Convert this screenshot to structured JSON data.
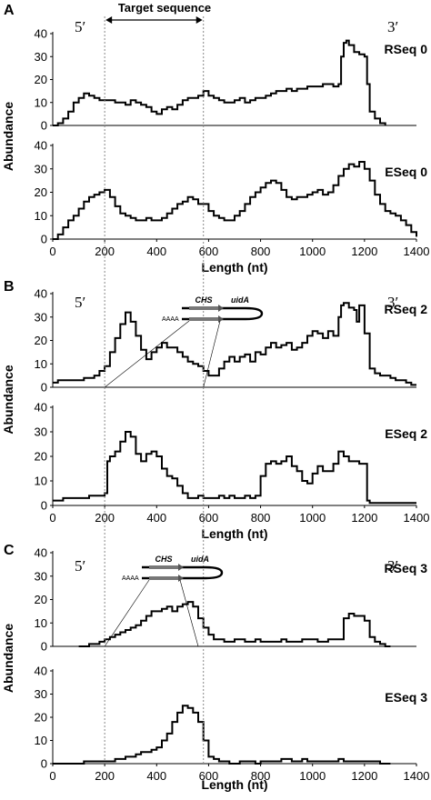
{
  "panels": [
    {
      "letter": "A",
      "label_5p": "5′",
      "label_3p": "3′",
      "ylabel": "Abundance",
      "xlabel": "Length (nt)",
      "target_label": "Target sequence"
    },
    {
      "letter": "B",
      "label_5p": "5′",
      "label_3p": "3′",
      "ylabel": "Abundance",
      "xlabel": "Length (nt)",
      "hairpin": {
        "chs": "CHS",
        "uida": "uidA",
        "polya": "AAAA"
      }
    },
    {
      "letter": "C",
      "label_5p": "5′",
      "label_3p": "3′",
      "ylabel": "Abundance",
      "xlabel": "Length (nt)",
      "hairpin": {
        "chs": "CHS",
        "uida": "uidA",
        "polya": "AAAA"
      }
    }
  ],
  "chart_data": [
    {
      "type": "line",
      "panel": "A",
      "name": "RSeq 0",
      "xlim": [
        0,
        1400
      ],
      "ylim": [
        0,
        40
      ],
      "yticks": [
        0,
        10,
        20,
        30,
        40
      ],
      "x": [
        0,
        20,
        40,
        60,
        80,
        100,
        120,
        140,
        160,
        180,
        200,
        220,
        240,
        260,
        280,
        300,
        320,
        340,
        360,
        380,
        400,
        420,
        440,
        460,
        480,
        500,
        520,
        540,
        560,
        580,
        600,
        620,
        640,
        660,
        680,
        700,
        720,
        740,
        760,
        780,
        800,
        820,
        840,
        860,
        880,
        900,
        920,
        940,
        960,
        980,
        1000,
        1020,
        1040,
        1060,
        1080,
        1100,
        1110,
        1120,
        1130,
        1140,
        1160,
        1180,
        1200,
        1210,
        1220,
        1240,
        1260,
        1280
      ],
      "y": [
        0,
        1,
        3,
        6,
        10,
        12,
        14,
        13,
        12,
        11,
        11,
        11,
        10,
        10,
        9,
        11,
        10,
        9,
        8,
        6,
        5,
        7,
        8,
        7,
        9,
        11,
        12,
        12,
        13,
        15,
        13,
        12,
        11,
        10,
        10,
        11,
        12,
        10,
        11,
        12,
        12,
        13,
        14,
        15,
        15,
        16,
        15,
        16,
        16,
        17,
        17,
        17,
        18,
        18,
        17,
        18,
        30,
        36,
        37,
        35,
        32,
        31,
        30,
        18,
        6,
        3,
        1,
        0
      ]
    },
    {
      "type": "line",
      "panel": "A",
      "name": "ESeq 0",
      "xlim": [
        0,
        1400
      ],
      "ylim": [
        0,
        40
      ],
      "xticks": [
        0,
        200,
        400,
        600,
        800,
        1000,
        1200,
        1400
      ],
      "yticks": [
        0,
        10,
        20,
        30,
        40
      ],
      "x": [
        0,
        20,
        40,
        60,
        80,
        100,
        120,
        140,
        160,
        180,
        200,
        220,
        240,
        260,
        280,
        300,
        320,
        340,
        360,
        380,
        400,
        420,
        440,
        460,
        480,
        500,
        520,
        540,
        560,
        580,
        600,
        620,
        640,
        660,
        680,
        700,
        720,
        740,
        760,
        780,
        800,
        820,
        840,
        860,
        880,
        900,
        920,
        940,
        960,
        980,
        1000,
        1020,
        1040,
        1060,
        1080,
        1100,
        1120,
        1140,
        1160,
        1180,
        1200,
        1220,
        1240,
        1260,
        1280,
        1300,
        1320,
        1340,
        1360,
        1380,
        1400
      ],
      "y": [
        0,
        2,
        5,
        8,
        10,
        13,
        16,
        18,
        19,
        20,
        21,
        18,
        14,
        11,
        10,
        9,
        8,
        8,
        9,
        8,
        8,
        9,
        11,
        13,
        15,
        16,
        18,
        17,
        15,
        15,
        12,
        10,
        9,
        8,
        8,
        10,
        12,
        15,
        18,
        20,
        22,
        24,
        25,
        24,
        21,
        18,
        17,
        18,
        18,
        19,
        20,
        21,
        19,
        20,
        23,
        27,
        30,
        32,
        31,
        33,
        30,
        25,
        19,
        15,
        12,
        11,
        10,
        8,
        6,
        3,
        1
      ]
    },
    {
      "type": "line",
      "panel": "B",
      "name": "RSeq 2",
      "xlim": [
        0,
        1400
      ],
      "ylim": [
        0,
        40
      ],
      "yticks": [
        0,
        10,
        20,
        30,
        40
      ],
      "x": [
        0,
        20,
        40,
        60,
        80,
        100,
        120,
        140,
        160,
        180,
        200,
        220,
        240,
        260,
        280,
        300,
        320,
        340,
        360,
        380,
        400,
        420,
        440,
        460,
        480,
        500,
        520,
        540,
        560,
        580,
        600,
        620,
        640,
        660,
        680,
        700,
        720,
        740,
        760,
        780,
        800,
        820,
        840,
        860,
        880,
        900,
        920,
        940,
        960,
        980,
        1000,
        1020,
        1040,
        1060,
        1080,
        1100,
        1110,
        1120,
        1140,
        1160,
        1170,
        1180,
        1200,
        1220,
        1240,
        1260,
        1280,
        1300,
        1320,
        1340,
        1360,
        1380,
        1400
      ],
      "y": [
        2,
        3,
        3,
        3,
        3,
        3,
        4,
        4,
        5,
        7,
        9,
        15,
        21,
        27,
        32,
        28,
        22,
        16,
        12,
        15,
        17,
        19,
        17,
        17,
        15,
        13,
        11,
        10,
        9,
        7,
        5,
        5,
        8,
        11,
        13,
        11,
        13,
        14,
        11,
        15,
        14,
        17,
        19,
        17,
        18,
        19,
        16,
        17,
        19,
        22,
        24,
        23,
        21,
        24,
        22,
        30,
        35,
        36,
        34,
        33,
        28,
        35,
        23,
        8,
        6,
        5,
        5,
        4,
        3,
        3,
        2,
        1,
        1
      ]
    },
    {
      "type": "line",
      "panel": "B",
      "name": "ESeq 2",
      "xlim": [
        0,
        1400
      ],
      "ylim": [
        0,
        40
      ],
      "xticks": [
        0,
        200,
        400,
        600,
        800,
        1000,
        1200,
        1400
      ],
      "yticks": [
        0,
        10,
        20,
        30,
        40
      ],
      "x": [
        0,
        20,
        40,
        60,
        80,
        100,
        120,
        140,
        160,
        180,
        200,
        210,
        220,
        240,
        260,
        280,
        300,
        320,
        340,
        360,
        380,
        400,
        420,
        440,
        460,
        480,
        500,
        520,
        540,
        560,
        580,
        600,
        620,
        640,
        660,
        680,
        700,
        720,
        740,
        760,
        780,
        800,
        820,
        840,
        860,
        880,
        900,
        920,
        940,
        960,
        980,
        1000,
        1020,
        1040,
        1060,
        1080,
        1100,
        1120,
        1140,
        1160,
        1180,
        1200,
        1210,
        1220,
        1240,
        1260,
        1280,
        1300,
        1320,
        1340,
        1360,
        1380,
        1400
      ],
      "y": [
        2,
        2,
        3,
        3,
        3,
        3,
        3,
        4,
        4,
        4,
        5,
        18,
        20,
        22,
        26,
        30,
        28,
        21,
        18,
        21,
        22,
        20,
        15,
        12,
        11,
        8,
        5,
        3,
        3,
        4,
        3,
        3,
        3,
        4,
        3,
        4,
        3,
        3,
        4,
        3,
        4,
        12,
        17,
        18,
        17,
        18,
        20,
        16,
        14,
        10,
        9,
        13,
        16,
        14,
        14,
        17,
        22,
        20,
        18,
        18,
        17,
        17,
        2,
        1,
        1,
        1,
        1,
        1,
        1,
        1,
        1,
        1,
        1
      ]
    },
    {
      "type": "line",
      "panel": "C",
      "name": "RSeq 3",
      "xlim": [
        0,
        1400
      ],
      "ylim": [
        0,
        40
      ],
      "yticks": [
        0,
        10,
        20,
        30,
        40
      ],
      "x": [
        100,
        120,
        140,
        160,
        180,
        200,
        220,
        240,
        260,
        280,
        300,
        320,
        340,
        360,
        380,
        400,
        420,
        440,
        460,
        480,
        500,
        520,
        540,
        560,
        580,
        600,
        620,
        640,
        660,
        680,
        700,
        720,
        740,
        760,
        780,
        800,
        820,
        840,
        860,
        880,
        900,
        920,
        940,
        960,
        980,
        1000,
        1020,
        1040,
        1060,
        1080,
        1100,
        1120,
        1140,
        1160,
        1180,
        1200,
        1220,
        1240,
        1260,
        1280,
        1300
      ],
      "y": [
        0,
        0,
        1,
        1,
        2,
        3,
        4,
        5,
        6,
        7,
        8,
        9,
        11,
        13,
        15,
        15,
        16,
        17,
        15,
        17,
        18,
        19,
        17,
        12,
        8,
        5,
        3,
        3,
        2,
        2,
        3,
        3,
        2,
        2,
        3,
        2,
        2,
        2,
        2,
        3,
        2,
        2,
        2,
        3,
        3,
        3,
        2,
        2,
        3,
        3,
        3,
        12,
        14,
        13,
        13,
        11,
        4,
        2,
        1,
        0,
        0
      ]
    },
    {
      "type": "line",
      "panel": "C",
      "name": "ESeq 3",
      "xlim": [
        0,
        1400
      ],
      "ylim": [
        0,
        40
      ],
      "xticks": [
        0,
        200,
        400,
        600,
        800,
        1000,
        1200,
        1400
      ],
      "yticks": [
        0,
        10,
        20,
        30,
        40
      ],
      "x": [
        0,
        20,
        40,
        60,
        80,
        100,
        120,
        140,
        160,
        180,
        200,
        220,
        240,
        260,
        280,
        300,
        320,
        340,
        360,
        380,
        400,
        420,
        440,
        460,
        480,
        500,
        520,
        540,
        560,
        580,
        600,
        620,
        640,
        660,
        680,
        700,
        720,
        740,
        760,
        780,
        800,
        820,
        840,
        860,
        880,
        900,
        920,
        940,
        960,
        980,
        1000,
        1020,
        1040,
        1060,
        1080,
        1100,
        1120,
        1140,
        1160,
        1180,
        1200,
        1220,
        1240,
        1260,
        1280,
        1300
      ],
      "y": [
        0,
        0,
        0,
        0,
        0,
        0,
        1,
        1,
        1,
        1,
        1,
        1,
        2,
        2,
        3,
        3,
        4,
        5,
        5,
        6,
        7,
        10,
        13,
        18,
        22,
        25,
        24,
        22,
        18,
        10,
        3,
        2,
        1,
        1,
        0,
        0,
        1,
        1,
        1,
        0,
        1,
        1,
        1,
        1,
        2,
        2,
        1,
        1,
        2,
        1,
        1,
        1,
        1,
        1,
        1,
        2,
        1,
        1,
        1,
        1,
        1,
        1,
        1,
        0,
        0,
        0
      ]
    }
  ]
}
